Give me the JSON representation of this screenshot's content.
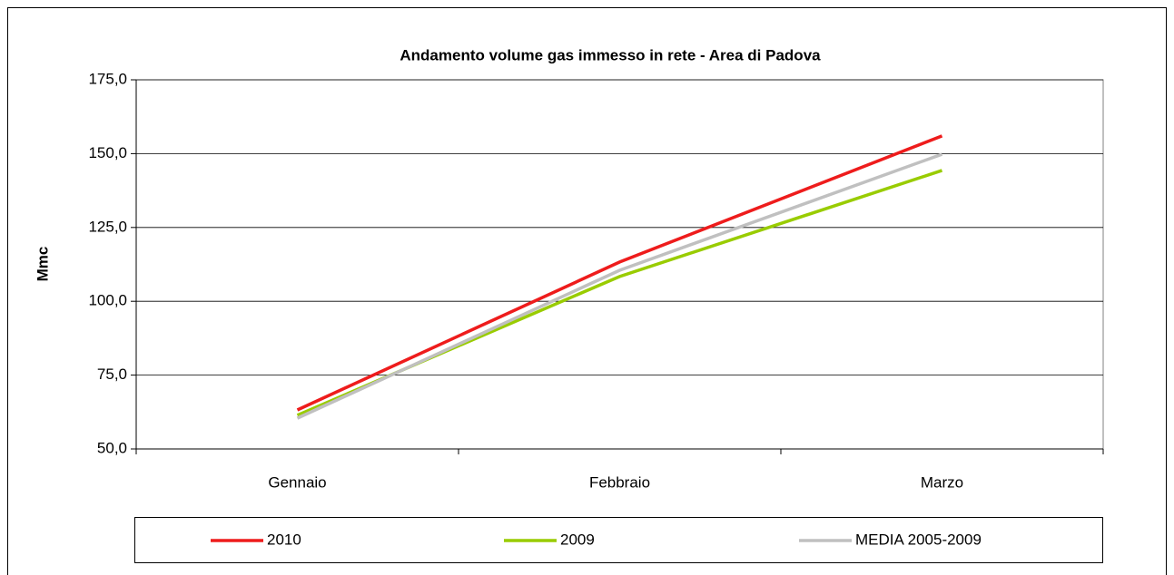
{
  "chart_data": {
    "type": "line",
    "title": "Andamento volume gas immesso in rete - Area di  Padova",
    "y_label": "Mmc",
    "categories": [
      "Gennaio",
      "Febbraio",
      "Marzo"
    ],
    "series": [
      {
        "name": "2010",
        "color": "#ee1c1c",
        "values": [
          63.2,
          113.3,
          156.0
        ]
      },
      {
        "name": "2009",
        "color": "#99cc00",
        "values": [
          61.4,
          108.4,
          144.3
        ]
      },
      {
        "name": "MEDIA 2005-2009",
        "color": "#c0c0c0",
        "values": [
          60.4,
          110.5,
          149.8
        ]
      }
    ],
    "ylim": [
      50,
      175
    ],
    "yticks": [
      {
        "value": 50,
        "label": "50,0"
      },
      {
        "value": 75,
        "label": "75,0"
      },
      {
        "value": 100,
        "label": "100,0"
      },
      {
        "value": 125,
        "label": "125,0"
      },
      {
        "value": 150,
        "label": "150,0"
      },
      {
        "value": 175,
        "label": "175,0"
      }
    ],
    "grid": true
  }
}
